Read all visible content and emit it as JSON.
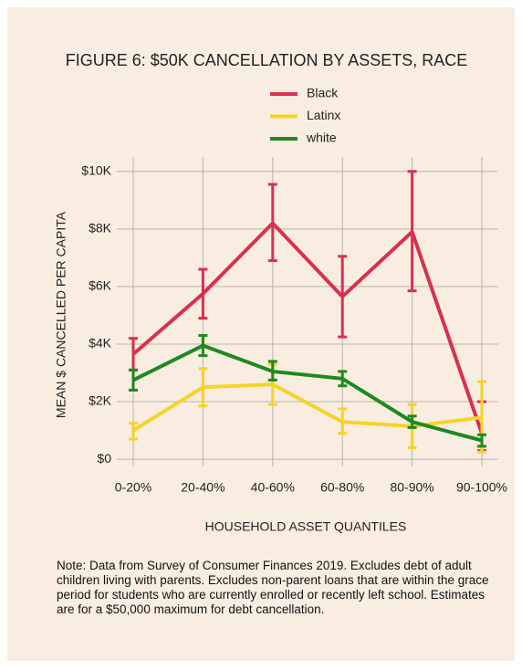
{
  "chart_data": {
    "type": "line",
    "title": "FIGURE 6: $50K CANCELLATION BY ASSETS, RACE",
    "x_label": "HOUSEHOLD ASSET QUANTILES",
    "y_label": "MEAN $ CANCELLED PER CAPITA",
    "categories": [
      "0-20%",
      "20-40%",
      "40-60%",
      "60-80%",
      "80-90%",
      "90-100%"
    ],
    "series": [
      {
        "name": "Black",
        "color": "#d9304f",
        "values": [
          3650,
          5750,
          8200,
          5650,
          7900,
          900
        ],
        "low": [
          3100,
          4900,
          6900,
          4250,
          5850,
          300
        ],
        "high": [
          4200,
          6600,
          9550,
          7050,
          10000,
          2000
        ]
      },
      {
        "name": "Latinx",
        "color": "#f5d327",
        "values": [
          1000,
          2500,
          2600,
          1300,
          1150,
          1450
        ],
        "low": [
          700,
          1850,
          1900,
          900,
          400,
          250
        ],
        "high": [
          1250,
          3150,
          3300,
          1750,
          1900,
          2700
        ]
      },
      {
        "name": "white",
        "color": "#1e8a1e",
        "values": [
          2750,
          3950,
          3050,
          2800,
          1300,
          650
        ],
        "low": [
          2400,
          3600,
          2750,
          2550,
          1100,
          450
        ],
        "high": [
          3100,
          4300,
          3400,
          3050,
          1500,
          850
        ]
      }
    ],
    "ylim": [
      -250,
      10500
    ],
    "yticks": [
      {
        "value": 0,
        "label": "$0"
      },
      {
        "value": 2000,
        "label": "$2K"
      },
      {
        "value": 4000,
        "label": "$4K"
      },
      {
        "value": 6000,
        "label": "$6K"
      },
      {
        "value": 8000,
        "label": "$8K"
      },
      {
        "value": 10000,
        "label": "$10K"
      }
    ],
    "grid": true,
    "legend": "top",
    "note": "Note: Data from Survey of Consumer Finances 2019. Excludes debt of adult children living with parents. Excludes non-parent loans that are within the grace period for students who are currently enrolled or recently left school. Estimates are for a $50,000 maximum for debt cancellation."
  }
}
